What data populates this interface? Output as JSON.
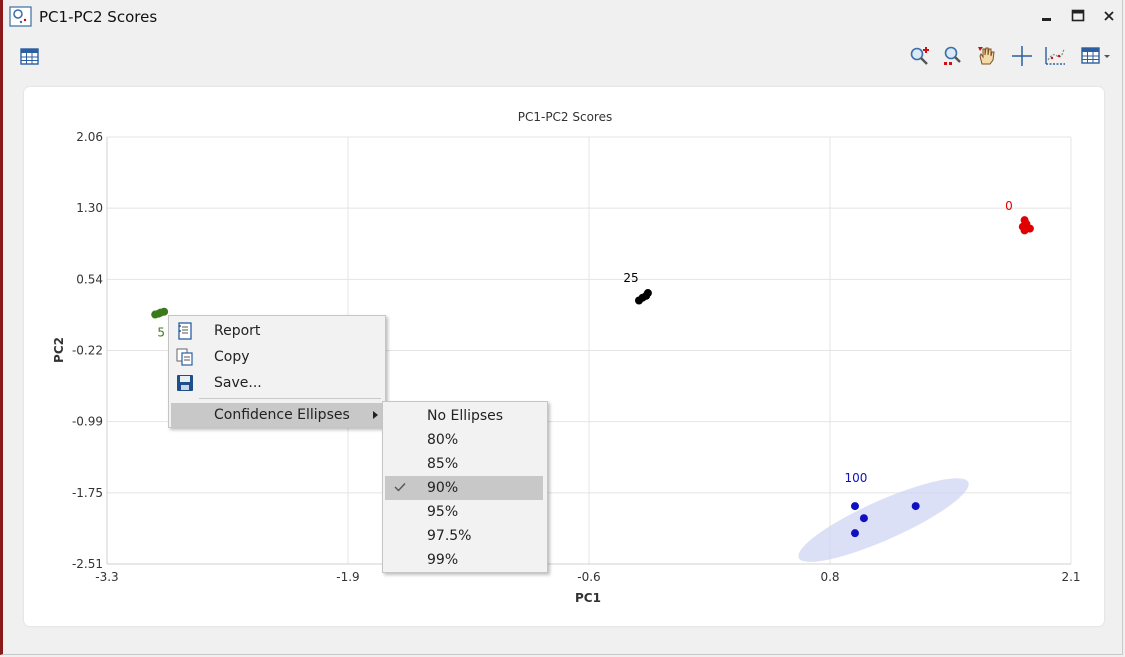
{
  "window": {
    "title": "PC1-PC2 Scores",
    "controls": [
      "minimize-icon",
      "maximize-icon",
      "close-icon"
    ]
  },
  "toolbar": {
    "left_icon": "table-icon",
    "right_icons": [
      "zoom-in-icon",
      "zoom-reset-icon",
      "pan-hand-icon",
      "crosshair-icon",
      "plot-options-icon",
      "table-dropdown-icon"
    ]
  },
  "context_menu": {
    "items": [
      {
        "label": "Report",
        "icon": "report-icon"
      },
      {
        "label": "Copy",
        "icon": "copy-icon"
      },
      {
        "label": "Save...",
        "icon": "save-icon"
      },
      {
        "label": "Confidence Ellipses",
        "has_submenu": true
      }
    ]
  },
  "submenu": {
    "items": [
      "No Ellipses",
      "80%",
      "85%",
      "90%",
      "95%",
      "97.5%",
      "99%"
    ],
    "selected": "90%"
  },
  "chart_data": {
    "type": "scatter",
    "title": "PC1-PC2 Scores",
    "xlabel": "PC1",
    "ylabel": "PC2",
    "xlim": [
      -3.3,
      2.1
    ],
    "ylim": [
      -2.51,
      2.06
    ],
    "x_ticks": [
      "-3.3",
      "-1.9",
      "-0.6",
      "0.8",
      "2.1"
    ],
    "y_ticks": [
      "2.06",
      "1.30",
      "0.54",
      "-0.22",
      "-0.99",
      "-1.75",
      "-2.51"
    ],
    "grid": true,
    "series": [
      {
        "name": "0",
        "color": "#e00000",
        "points": [
          [
            1.84,
            1.17
          ],
          [
            1.85,
            1.13
          ],
          [
            1.83,
            1.1
          ],
          [
            1.87,
            1.08
          ],
          [
            1.84,
            1.06
          ]
        ]
      },
      {
        "name": "25",
        "color": "#000000",
        "points": [
          [
            -0.27,
            0.39
          ],
          [
            -0.3,
            0.34
          ],
          [
            -0.32,
            0.31
          ],
          [
            -0.28,
            0.36
          ]
        ]
      },
      {
        "name": "5",
        "color": "#3a7a1a",
        "points": [
          [
            -2.98,
            0.19
          ],
          [
            -3.01,
            0.17
          ],
          [
            -3.03,
            0.16
          ],
          [
            -3.0,
            0.18
          ]
        ]
      },
      {
        "name": "100",
        "color": "#1010c0",
        "points": [
          [
            0.89,
            -1.89
          ],
          [
            1.23,
            -1.89
          ],
          [
            0.94,
            -2.02
          ],
          [
            0.89,
            -2.18
          ]
        ],
        "ellipse": {
          "cx": 1.05,
          "cy": -2.04,
          "rx": 0.52,
          "ry": 0.21,
          "angle": -24
        }
      }
    ]
  }
}
